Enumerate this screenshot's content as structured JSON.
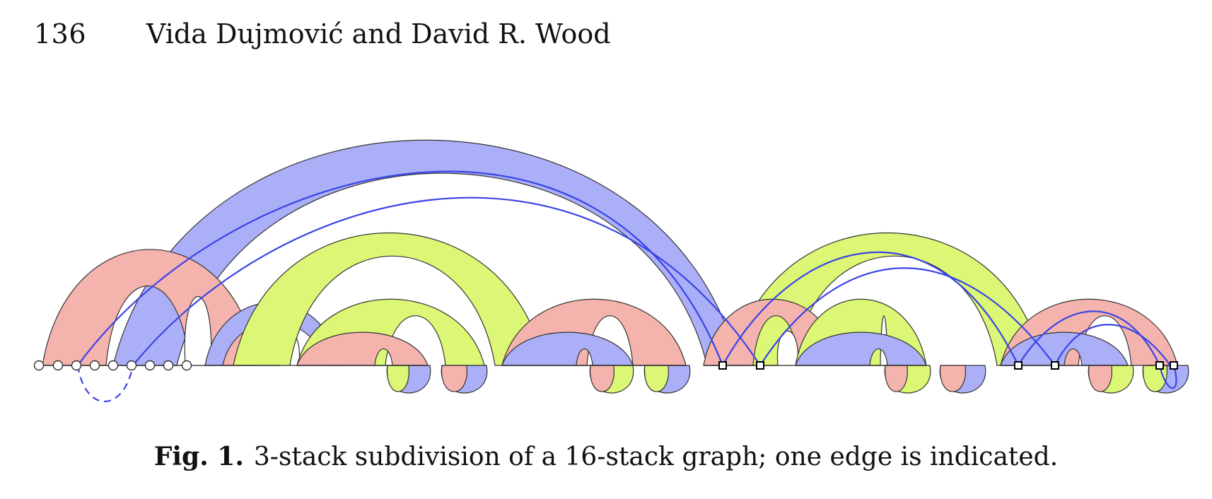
{
  "header": {
    "page_number": "136",
    "running_title": "Vida Dujmović and David R. Wood"
  },
  "figure": {
    "caption_label": "Fig. 1.",
    "caption_text": "3-stack subdivision of a 16-stack graph; one edge is indicated.",
    "colors": {
      "pink": "#f4b3ad",
      "blue": "#aaaff7",
      "green": "#dbf775",
      "edge": "#3a44e6",
      "outline": "#333333"
    },
    "elements": {
      "spine_vertices": "circles",
      "division_vertices": "squares",
      "indicated_edge": "blue line",
      "dashed_edge": "dashed blue"
    }
  }
}
